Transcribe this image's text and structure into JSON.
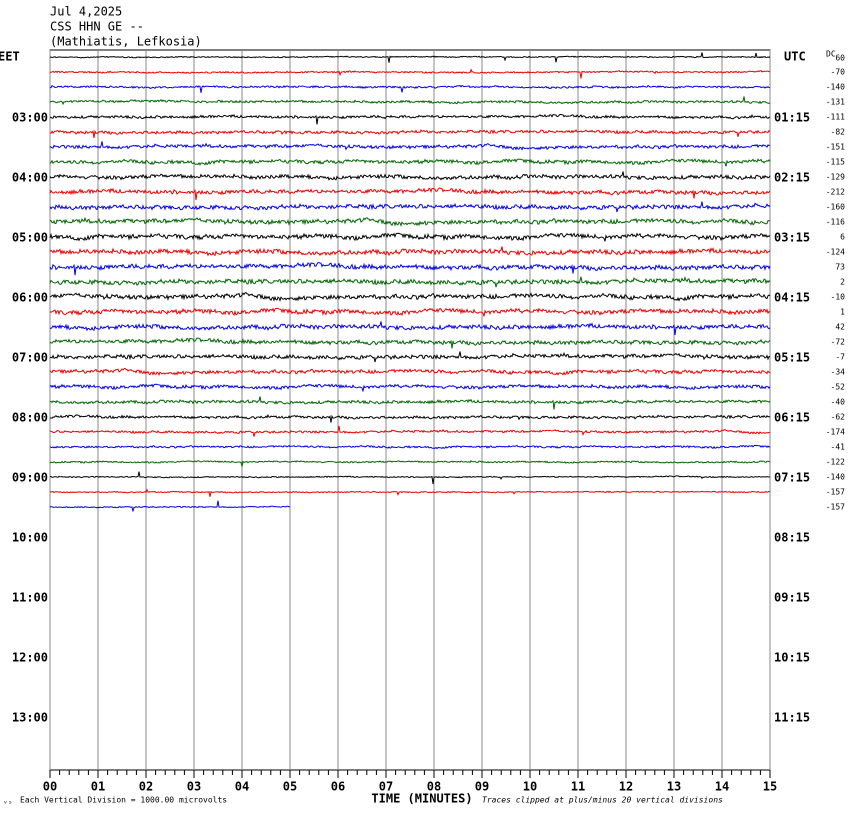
{
  "header": {
    "date": "Jul 4,2025",
    "station": "CSS HHN GE --",
    "location": "(Mathiatis, Lefkosia)"
  },
  "left_axis": {
    "label": "EET",
    "ticks": [
      "03:00",
      "04:00",
      "05:00",
      "06:00",
      "07:00",
      "08:00",
      "09:00",
      "10:00",
      "11:00",
      "12:00",
      "13:00"
    ]
  },
  "right_axis": {
    "label": "UTC",
    "ticks": [
      "01:15",
      "02:15",
      "03:15",
      "04:15",
      "05:15",
      "06:15",
      "07:15",
      "08:15",
      "09:15",
      "10:15",
      "11:15"
    ]
  },
  "dc_label": "DC",
  "dc_offsets": [
    60,
    -70,
    -140,
    -131,
    -111,
    -82,
    -151,
    -115,
    -129,
    -212,
    -160,
    -116,
    6,
    -124,
    73,
    2,
    -10,
    1,
    42,
    -72,
    -7,
    -34,
    -52,
    -40,
    -62,
    -174,
    -41,
    -122,
    -140,
    -157,
    -157
  ],
  "x_axis": {
    "label": "TIME (MINUTES)",
    "ticks": [
      "00",
      "01",
      "02",
      "03",
      "04",
      "05",
      "06",
      "07",
      "08",
      "09",
      "10",
      "11",
      "12",
      "13",
      "14",
      "15"
    ]
  },
  "footer": {
    "scale": "Each Vertical Division = 1000.00 microvolts",
    "clip": "Traces clipped at plus/minus 20 vertical divisions"
  }
}
